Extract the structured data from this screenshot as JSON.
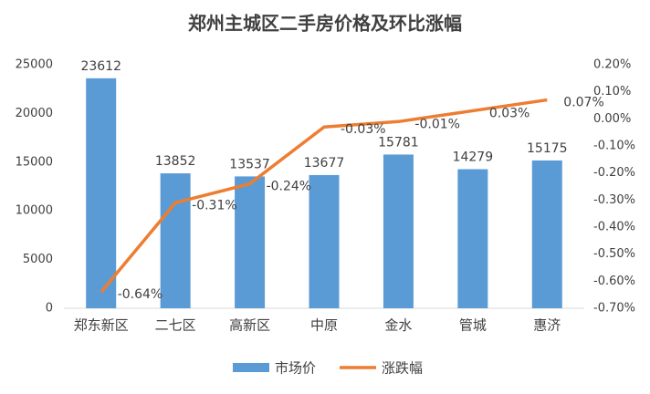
{
  "chart_data": {
    "type": "bar-line",
    "title": "郑州主城区二手房价格及环比涨幅",
    "categories": [
      "郑东新区",
      "二七区",
      "高新区",
      "中原",
      "金水",
      "管城",
      "惠济"
    ],
    "series": [
      {
        "name": "市场价",
        "type": "bar",
        "color": "#5b9bd5",
        "values": [
          23612,
          13852,
          13537,
          13677,
          15781,
          14279,
          15175
        ]
      },
      {
        "name": "涨跌幅",
        "type": "line",
        "axis": "y2",
        "color": "#ed7d31",
        "values": [
          -0.64,
          -0.31,
          -0.24,
          -0.03,
          -0.01,
          0.03,
          0.07
        ],
        "value_labels": [
          "-0.64%",
          "-0.31%",
          "-0.24%",
          "-0.03%",
          "-0.01%",
          "0.03%",
          "0.07%"
        ]
      }
    ],
    "ylim": [
      0,
      25000
    ],
    "yticks": [
      0,
      5000,
      10000,
      15000,
      20000,
      25000
    ],
    "y2lim": [
      -0.7,
      0.2
    ],
    "y2ticks": [
      {
        "value": 0.2,
        "label": "0.20%"
      },
      {
        "value": 0.1,
        "label": "0.10%"
      },
      {
        "value": 0,
        "label": "0.00%"
      },
      {
        "value": -0.1,
        "label": "-0.10%"
      },
      {
        "value": -0.2,
        "label": "-0.20%"
      },
      {
        "value": -0.3,
        "label": "-0.30%"
      },
      {
        "value": -0.4,
        "label": "-0.40%"
      },
      {
        "value": -0.5,
        "label": "-0.50%"
      },
      {
        "value": -0.6,
        "label": "-0.60%"
      },
      {
        "value": -0.7,
        "label": "-0.70%"
      }
    ],
    "grid": false,
    "legend": "bottom"
  }
}
